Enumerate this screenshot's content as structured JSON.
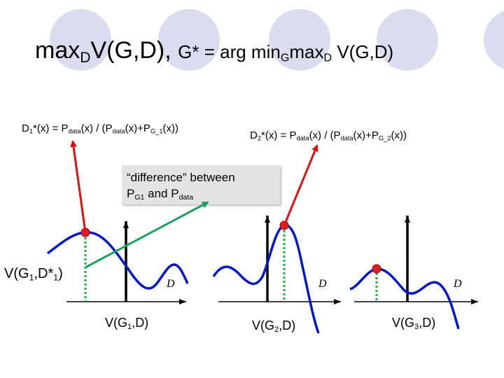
{
  "title": {
    "lhs_main": "max",
    "lhs_sub": "D",
    "lhs_rest": "V(G,D),",
    "rhs_main": "G* = arg min",
    "rhs_sub1": "G",
    "rhs_mid": "max",
    "rhs_sub2": "D",
    "rhs_rest": " V(G,D)"
  },
  "formula1": {
    "d": "D",
    "d_sub": "1",
    "star": "*(x) = P",
    "data_sub": "data",
    "mid": "(x) / (P",
    "data_sub2": "data",
    "plus": "(x)+P",
    "g_sub": "G_1",
    "end": "(x))"
  },
  "formula2": {
    "d": "D",
    "d_sub": "2",
    "star": "*(x) = P",
    "data_sub": "data",
    "mid": "(x) / (P",
    "data_sub2": "data",
    "plus": "(x)+P",
    "g_sub": "G_2",
    "end": "(x))"
  },
  "difference_box": {
    "line1": "“difference” between",
    "p1": "P",
    "p1_sub": "G1",
    "and": " and P",
    "p2_sub": "data"
  },
  "v_g1_dstar": {
    "v": "V(G",
    "sub1": "1",
    "mid": ",D*",
    "sub2": "1",
    "end": ")"
  },
  "axis_labels": [
    "D",
    "D",
    "D"
  ],
  "bottom_labels": [
    {
      "pre": "V(G",
      "sub": "1",
      "post": ",D)"
    },
    {
      "pre": "V(G",
      "sub": "2",
      "post": ",D)"
    },
    {
      "pre": "V(G",
      "sub": "3",
      "post": ",D)"
    }
  ],
  "colors": {
    "curve": "#0018c8",
    "red_arrow": "#e01010",
    "green_arrow": "#1aa060",
    "dotted_green": "#20b040",
    "max_point": "#e02020",
    "deco_circle": "#dcdcf0"
  }
}
